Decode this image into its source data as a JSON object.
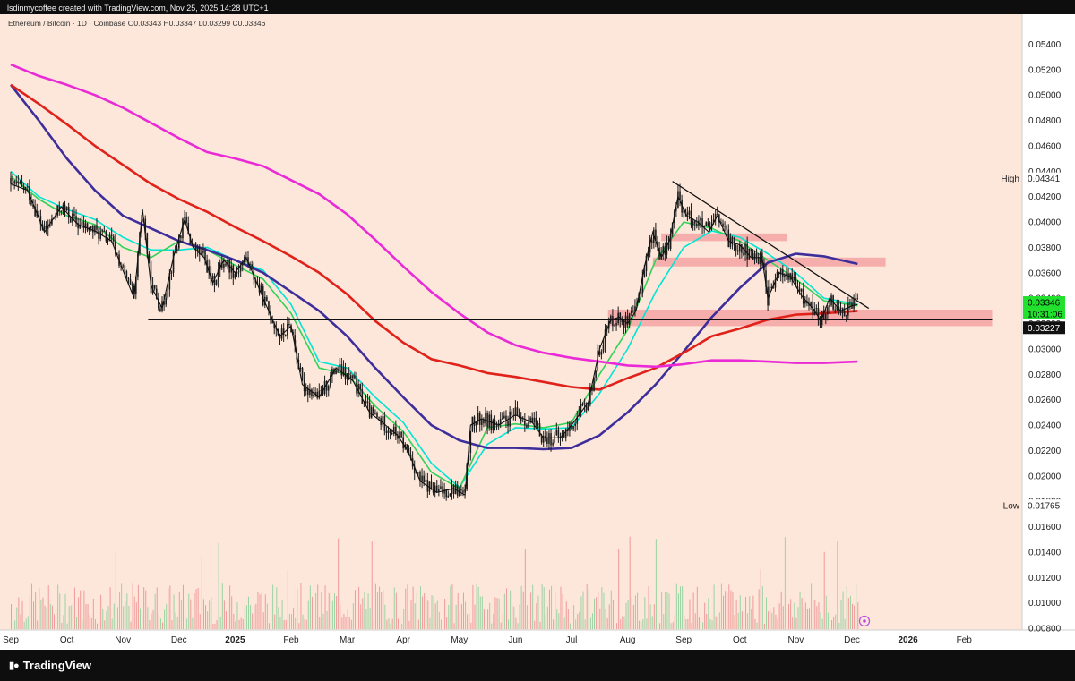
{
  "top_caption": "lsdinmycoffee created with TradingView.com, Nov 25, 2025 14:28 UTC+1",
  "brand": {
    "name": "TradingView",
    "logo_icon": "tradingview-logo-icon"
  },
  "symbol": {
    "name": "Ethereum / Bitcoin",
    "interval": "1D",
    "exchange": "Coinbase",
    "ohlc_text": "O0.03343 H0.03347 L0.03299 C0.03346"
  },
  "chart_data": {
    "type": "line",
    "title": "",
    "y_ticks": [
      "0.05400",
      "0.05200",
      "0.05000",
      "0.04800",
      "0.04600",
      "0.04400",
      "0.04200",
      "0.04000",
      "0.03800",
      "0.03600",
      "0.03400",
      "0.03200",
      "0.03000",
      "0.02800",
      "0.02600",
      "0.02400",
      "0.02200",
      "0.02000",
      "0.01800",
      "0.01600",
      "0.01400",
      "0.01200",
      "0.01000",
      "0.00800"
    ],
    "ylim": [
      0.0079,
      0.0553
    ],
    "x_ticks": [
      "Sep",
      "Oct",
      "Nov",
      "Dec",
      "2025",
      "Feb",
      "Mar",
      "Apr",
      "May",
      "Jun",
      "Jul",
      "Aug",
      "Sep",
      "Oct",
      "Nov",
      "Dec",
      "2026",
      "Feb"
    ],
    "x_tick_months": [
      0,
      1,
      2,
      3,
      4,
      5,
      6,
      7,
      8,
      9,
      10,
      11,
      12,
      13,
      14,
      15,
      16,
      17
    ],
    "x_start_label": "Sep 2024",
    "price_series": {
      "name": "",
      "color": "#111111",
      "points": [
        [
          0,
          0.043
        ],
        [
          0.3,
          0.0425
        ],
        [
          0.6,
          0.0392
        ],
        [
          0.9,
          0.0412
        ],
        [
          1.2,
          0.0398
        ],
        [
          1.5,
          0.0393
        ],
        [
          1.8,
          0.0385
        ],
        [
          2.0,
          0.0362
        ],
        [
          2.2,
          0.034
        ],
        [
          2.35,
          0.041
        ],
        [
          2.5,
          0.035
        ],
        [
          2.7,
          0.0332
        ],
        [
          2.9,
          0.0372
        ],
        [
          3.1,
          0.0402
        ],
        [
          3.25,
          0.038
        ],
        [
          3.45,
          0.0372
        ],
        [
          3.6,
          0.0352
        ],
        [
          3.8,
          0.037
        ],
        [
          4.0,
          0.036
        ],
        [
          4.2,
          0.0372
        ],
        [
          4.5,
          0.034
        ],
        [
          4.8,
          0.031
        ],
        [
          5.0,
          0.0318
        ],
        [
          5.2,
          0.0272
        ],
        [
          5.5,
          0.0262
        ],
        [
          5.8,
          0.0285
        ],
        [
          6.1,
          0.0275
        ],
        [
          6.4,
          0.025
        ],
        [
          6.6,
          0.0243
        ],
        [
          6.9,
          0.0232
        ],
        [
          7.1,
          0.0218
        ],
        [
          7.3,
          0.0196
        ],
        [
          7.6,
          0.0187
        ],
        [
          7.9,
          0.019
        ],
        [
          8.1,
          0.0185
        ],
        [
          8.2,
          0.024
        ],
        [
          8.4,
          0.0245
        ],
        [
          8.7,
          0.024
        ],
        [
          9.0,
          0.0248
        ],
        [
          9.3,
          0.0242
        ],
        [
          9.5,
          0.023
        ],
        [
          9.8,
          0.023
        ],
        [
          10.0,
          0.024
        ],
        [
          10.3,
          0.0258
        ],
        [
          10.5,
          0.03
        ],
        [
          10.7,
          0.0323
        ],
        [
          10.85,
          0.0325
        ],
        [
          11.0,
          0.032
        ],
        [
          11.15,
          0.033
        ],
        [
          11.3,
          0.0365
        ],
        [
          11.45,
          0.0392
        ],
        [
          11.6,
          0.0372
        ],
        [
          11.75,
          0.0386
        ],
        [
          11.9,
          0.042
        ],
        [
          12.05,
          0.0405
        ],
        [
          12.25,
          0.04
        ],
        [
          12.45,
          0.0392
        ],
        [
          12.6,
          0.0405
        ],
        [
          12.8,
          0.0385
        ],
        [
          13.0,
          0.0382
        ],
        [
          13.2,
          0.0372
        ],
        [
          13.4,
          0.0372
        ],
        [
          13.5,
          0.034
        ],
        [
          13.7,
          0.036
        ],
        [
          13.9,
          0.0357
        ],
        [
          14.1,
          0.0342
        ],
        [
          14.3,
          0.0332
        ],
        [
          14.45,
          0.0322
        ],
        [
          14.6,
          0.034
        ],
        [
          14.8,
          0.033
        ],
        [
          15.0,
          0.0334
        ],
        [
          15.1,
          0.0335
        ]
      ]
    },
    "moving_averages": [
      {
        "name": "",
        "color": "#00e5d4",
        "points": [
          [
            0,
            0.044
          ],
          [
            0.5,
            0.042
          ],
          [
            1.0,
            0.041
          ],
          [
            1.5,
            0.0402
          ],
          [
            2.0,
            0.0388
          ],
          [
            2.5,
            0.0378
          ],
          [
            3.0,
            0.0378
          ],
          [
            3.5,
            0.038
          ],
          [
            4.0,
            0.037
          ],
          [
            4.5,
            0.0362
          ],
          [
            5.0,
            0.0335
          ],
          [
            5.5,
            0.029
          ],
          [
            6.0,
            0.0285
          ],
          [
            6.5,
            0.0262
          ],
          [
            7.0,
            0.0242
          ],
          [
            7.5,
            0.021
          ],
          [
            8.0,
            0.0191
          ],
          [
            8.5,
            0.0225
          ],
          [
            9.0,
            0.0238
          ],
          [
            9.5,
            0.0237
          ],
          [
            10.0,
            0.0238
          ],
          [
            10.5,
            0.0265
          ],
          [
            11.0,
            0.03
          ],
          [
            11.5,
            0.0345
          ],
          [
            12.0,
            0.038
          ],
          [
            12.5,
            0.0393
          ],
          [
            13.0,
            0.0388
          ],
          [
            13.5,
            0.0375
          ],
          [
            14.0,
            0.036
          ],
          [
            14.5,
            0.034
          ],
          [
            15.1,
            0.0335
          ]
        ]
      },
      {
        "name": "",
        "color": "#32d158",
        "points": [
          [
            0,
            0.0436
          ],
          [
            0.5,
            0.0418
          ],
          [
            1.0,
            0.0405
          ],
          [
            1.5,
            0.0398
          ],
          [
            2.0,
            0.038
          ],
          [
            2.5,
            0.0372
          ],
          [
            3.0,
            0.0385
          ],
          [
            3.5,
            0.0378
          ],
          [
            4.0,
            0.0366
          ],
          [
            4.5,
            0.0355
          ],
          [
            5.0,
            0.0328
          ],
          [
            5.5,
            0.0285
          ],
          [
            6.0,
            0.028
          ],
          [
            6.5,
            0.0255
          ],
          [
            7.0,
            0.0235
          ],
          [
            7.5,
            0.0203
          ],
          [
            8.0,
            0.019
          ],
          [
            8.5,
            0.0238
          ],
          [
            9.0,
            0.0241
          ],
          [
            9.5,
            0.0238
          ],
          [
            10.0,
            0.0242
          ],
          [
            10.5,
            0.028
          ],
          [
            11.0,
            0.0315
          ],
          [
            11.5,
            0.037
          ],
          [
            12.0,
            0.04
          ],
          [
            12.5,
            0.0395
          ],
          [
            13.0,
            0.0385
          ],
          [
            13.5,
            0.037
          ],
          [
            14.0,
            0.0355
          ],
          [
            14.5,
            0.0338
          ],
          [
            15.1,
            0.0334
          ]
        ]
      },
      {
        "name": "",
        "color": "#3d2e9c",
        "points": [
          [
            0,
            0.0508
          ],
          [
            0.5,
            0.048
          ],
          [
            1.0,
            0.045
          ],
          [
            1.5,
            0.0425
          ],
          [
            2.0,
            0.0405
          ],
          [
            2.5,
            0.0395
          ],
          [
            3.0,
            0.0385
          ],
          [
            3.5,
            0.0378
          ],
          [
            4.0,
            0.037
          ],
          [
            4.5,
            0.036
          ],
          [
            5.0,
            0.0345
          ],
          [
            5.5,
            0.033
          ],
          [
            6.0,
            0.031
          ],
          [
            6.5,
            0.0285
          ],
          [
            7.0,
            0.0262
          ],
          [
            7.5,
            0.024
          ],
          [
            8.0,
            0.0228
          ],
          [
            8.5,
            0.0222
          ],
          [
            9.0,
            0.0222
          ],
          [
            9.5,
            0.0221
          ],
          [
            10.0,
            0.0222
          ],
          [
            10.5,
            0.0232
          ],
          [
            11.0,
            0.025
          ],
          [
            11.5,
            0.0272
          ],
          [
            12.0,
            0.0298
          ],
          [
            12.5,
            0.0325
          ],
          [
            13.0,
            0.0348
          ],
          [
            13.5,
            0.0368
          ],
          [
            14.0,
            0.0375
          ],
          [
            14.5,
            0.0373
          ],
          [
            15.1,
            0.0367
          ]
        ]
      },
      {
        "name": "",
        "color": "#e0221a",
        "points": [
          [
            0,
            0.0508
          ],
          [
            0.5,
            0.0493
          ],
          [
            1.0,
            0.0477
          ],
          [
            1.5,
            0.046
          ],
          [
            2.0,
            0.0445
          ],
          [
            2.5,
            0.043
          ],
          [
            3.0,
            0.0418
          ],
          [
            3.5,
            0.0408
          ],
          [
            4.0,
            0.0396
          ],
          [
            4.5,
            0.0385
          ],
          [
            5.0,
            0.0373
          ],
          [
            5.5,
            0.036
          ],
          [
            6.0,
            0.0343
          ],
          [
            6.5,
            0.0322
          ],
          [
            7.0,
            0.0305
          ],
          [
            7.5,
            0.0292
          ],
          [
            8.0,
            0.0287
          ],
          [
            8.5,
            0.0281
          ],
          [
            9.0,
            0.0278
          ],
          [
            9.5,
            0.0274
          ],
          [
            10.0,
            0.027
          ],
          [
            10.5,
            0.0268
          ],
          [
            11.0,
            0.0277
          ],
          [
            11.5,
            0.0285
          ],
          [
            12.0,
            0.0297
          ],
          [
            12.5,
            0.031
          ],
          [
            13.0,
            0.0316
          ],
          [
            13.5,
            0.0323
          ],
          [
            14.0,
            0.0327
          ],
          [
            14.5,
            0.0328
          ],
          [
            15.1,
            0.033
          ]
        ]
      },
      {
        "name": "",
        "color": "#ea2ad6",
        "points": [
          [
            0,
            0.0524
          ],
          [
            0.5,
            0.0515
          ],
          [
            1.0,
            0.0508
          ],
          [
            1.5,
            0.05
          ],
          [
            2.0,
            0.049
          ],
          [
            2.5,
            0.0478
          ],
          [
            3.0,
            0.0466
          ],
          [
            3.5,
            0.0455
          ],
          [
            4.0,
            0.045
          ],
          [
            4.5,
            0.0444
          ],
          [
            5.0,
            0.0433
          ],
          [
            5.5,
            0.0422
          ],
          [
            6.0,
            0.0406
          ],
          [
            6.5,
            0.0386
          ],
          [
            7.0,
            0.0365
          ],
          [
            7.5,
            0.0345
          ],
          [
            8.0,
            0.0328
          ],
          [
            8.5,
            0.0313
          ],
          [
            9.0,
            0.0303
          ],
          [
            9.5,
            0.0297
          ],
          [
            10.0,
            0.0293
          ],
          [
            10.5,
            0.029
          ],
          [
            11.0,
            0.0287
          ],
          [
            11.5,
            0.0286
          ],
          [
            12.0,
            0.0288
          ],
          [
            12.5,
            0.0291
          ],
          [
            13.0,
            0.0291
          ],
          [
            13.5,
            0.029
          ],
          [
            14.0,
            0.0289
          ],
          [
            14.5,
            0.0289
          ],
          [
            15.1,
            0.029
          ]
        ]
      }
    ],
    "trendline": {
      "from": [
        11.8,
        0.0432
      ],
      "to": [
        15.3,
        0.0332
      ],
      "color": "#111111"
    },
    "support_line": {
      "from": [
        2.45,
        0.0323
      ],
      "to": [
        17.5,
        0.0323
      ],
      "color": "#111111"
    },
    "zones": [
      {
        "x1": 11.6,
        "x2": 13.85,
        "y1": 0.0385,
        "y2": 0.0391,
        "color": "#f4a3a3"
      },
      {
        "x1": 11.45,
        "x2": 15.6,
        "y1": 0.0365,
        "y2": 0.0372,
        "color": "#f4a3a3"
      },
      {
        "x1": 10.65,
        "x2": 17.5,
        "y1": 0.0318,
        "y2": 0.0331,
        "color": "#f4a3a3"
      }
    ],
    "markers": {
      "high": {
        "label": "High",
        "value": "0.04341"
      },
      "low": {
        "label": "Low",
        "value": "0.01765"
      },
      "last_price": {
        "value": "0.03346",
        "countdown": "10:31:06",
        "color": "#22e02e"
      },
      "support_price": {
        "value": "0.03227"
      }
    },
    "volume": {
      "note": "",
      "up_color": "#9bd3a3",
      "down_color": "#f19a9a"
    },
    "grid": false,
    "legend": "none"
  }
}
